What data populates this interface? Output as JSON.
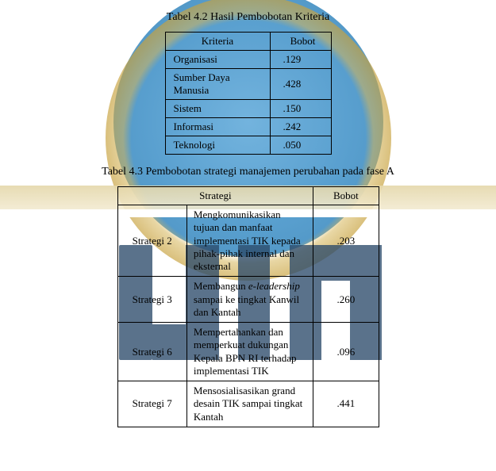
{
  "table42": {
    "caption": "Tabel 4.2  Hasil Pembobotan Kriteria",
    "header_kriteria": "Kriteria",
    "header_bobot": "Bobot",
    "rows": [
      {
        "kriteria": "Organisasi",
        "bobot": ".129"
      },
      {
        "kriteria": "Sumber Daya Manusia",
        "bobot": ".428"
      },
      {
        "kriteria": "Sistem",
        "bobot": ".150"
      },
      {
        "kriteria": "Informasi",
        "bobot": ".242"
      },
      {
        "kriteria": "Teknologi",
        "bobot": ".050"
      }
    ]
  },
  "table43": {
    "caption": "Tabel 4.3  Pembobotan strategi manajemen perubahan pada fase A",
    "header_strategi": "Strategi",
    "header_bobot": "Bobot",
    "rows": [
      {
        "name": "Strategi  2",
        "desc_plain": "Mengkomunikasikan tujuan dan manfaat implementasi TIK kepada pihak-pihak internal dan eksternal",
        "bobot": ".203"
      },
      {
        "name": "Strategi 3",
        "desc_pre": "Membangun ",
        "desc_em": "e-leadership",
        "desc_post": " sampai ke tingkat Kanwil dan Kantah",
        "bobot": ".260"
      },
      {
        "name": "Strategi 6",
        "desc_plain": "Mempertahankan dan memperkuat dukungan Kepala BPN RI terhadap implementasi TIK",
        "bobot": ".096"
      },
      {
        "name": "Strategi 7",
        "desc_plain": "Mensosialisasikan grand desain TIK sampai tingkat Kantah",
        "bobot": ".441"
      }
    ]
  },
  "colors": {
    "watermark_blue": "#2b4a6a",
    "circle_blue": "#3b8ec6",
    "band_gold": "#e4d7aa",
    "text": "#000000",
    "border": "#000000",
    "background": "#ffffff"
  }
}
